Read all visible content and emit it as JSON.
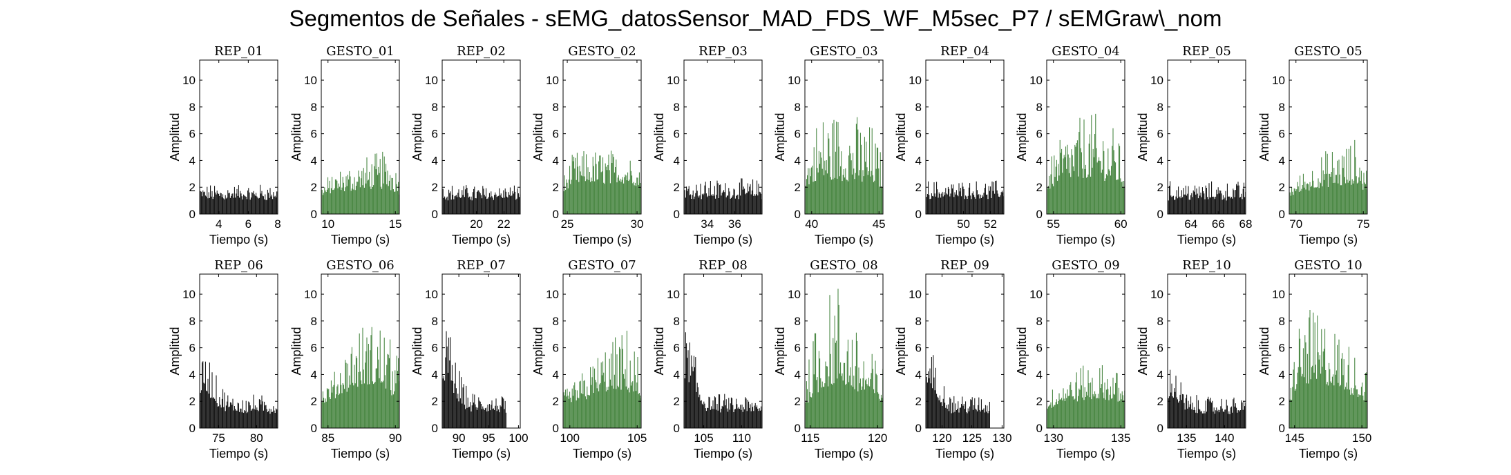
{
  "figure": {
    "title": "Segmentos de Señales - sEMG_datosSensor_MAD_FDS_WF_M5sec_P7 / sEMGraw\\_nom"
  },
  "colors": {
    "rest": "#000000",
    "gesture": "#3a7d33",
    "axis": "#000000",
    "background": "#ffffff"
  },
  "chart_data": [
    {
      "type": "area",
      "title": "REP_01",
      "kind": "rest",
      "xlabel": "Tiempo (s)",
      "ylabel": "Amplitud",
      "xlim": [
        2.7,
        8.0
      ],
      "ylim": [
        0,
        11.5
      ],
      "xticks": [
        4,
        6,
        8
      ],
      "yticks": [
        0,
        2,
        4,
        6,
        8,
        10
      ],
      "x": [
        2.7,
        8.0
      ],
      "envelope": [
        2.0,
        2.0
      ],
      "baseline": [
        1.0,
        1.0
      ]
    },
    {
      "type": "area",
      "title": "GESTO_01",
      "kind": "gesture",
      "xlabel": "Tiempo (s)",
      "ylabel": "Amplitud",
      "xlim": [
        9.5,
        15.3
      ],
      "ylim": [
        0,
        11.5
      ],
      "xticks": [
        10,
        15
      ],
      "yticks": [
        0,
        2,
        4,
        6,
        8,
        10
      ],
      "x": [
        9.5,
        10.5,
        12.5,
        14.5,
        15.3
      ],
      "envelope": [
        2.2,
        3.0,
        4.0,
        4.7,
        3.2
      ],
      "baseline": [
        1.2,
        1.5,
        1.8,
        1.8,
        1.4
      ]
    },
    {
      "type": "area",
      "title": "REP_02",
      "kind": "rest",
      "xlabel": "Tiempo (s)",
      "ylabel": "Amplitud",
      "xlim": [
        17.5,
        23.2
      ],
      "ylim": [
        0,
        11.5
      ],
      "xticks": [
        20,
        22
      ],
      "yticks": [
        0,
        2,
        4,
        6,
        8,
        10
      ],
      "x": [
        17.5,
        23.2
      ],
      "envelope": [
        2.0,
        2.0
      ],
      "baseline": [
        1.0,
        1.0
      ]
    },
    {
      "type": "area",
      "title": "GESTO_02",
      "kind": "gesture",
      "xlabel": "Tiempo (s)",
      "ylabel": "Amplitud",
      "xlim": [
        24.7,
        30.3
      ],
      "ylim": [
        0,
        11.5
      ],
      "xticks": [
        25,
        30
      ],
      "yticks": [
        0,
        2,
        4,
        6,
        8,
        10
      ],
      "x": [
        24.7,
        25.5,
        27.5,
        29.5,
        30.3
      ],
      "envelope": [
        2.5,
        4.5,
        4.7,
        4.5,
        3.2
      ],
      "baseline": [
        1.5,
        2.2,
        2.2,
        2.2,
        1.8
      ]
    },
    {
      "type": "area",
      "title": "REP_03",
      "kind": "rest",
      "xlabel": "Tiempo (s)",
      "ylabel": "Amplitud",
      "xlim": [
        32.3,
        38.0
      ],
      "ylim": [
        0,
        11.5
      ],
      "xticks": [
        34,
        36
      ],
      "yticks": [
        0,
        2,
        4,
        6,
        8,
        10
      ],
      "x": [
        32.3,
        38.0
      ],
      "envelope": [
        2.4,
        2.4
      ],
      "baseline": [
        1.1,
        1.1
      ]
    },
    {
      "type": "area",
      "title": "GESTO_03",
      "kind": "gesture",
      "xlabel": "Tiempo (s)",
      "ylabel": "Amplitud",
      "xlim": [
        39.5,
        45.3
      ],
      "ylim": [
        0,
        11.5
      ],
      "xticks": [
        40,
        45
      ],
      "yticks": [
        0,
        2,
        4,
        6,
        8,
        10
      ],
      "x": [
        39.5,
        40.5,
        42.5,
        44.5,
        45.3
      ],
      "envelope": [
        3.5,
        7.5,
        7.8,
        6.5,
        4.2
      ],
      "baseline": [
        1.8,
        2.4,
        2.4,
        2.2,
        1.8
      ]
    },
    {
      "type": "area",
      "title": "REP_04",
      "kind": "rest",
      "xlabel": "Tiempo (s)",
      "ylabel": "Amplitud",
      "xlim": [
        47.2,
        53.0
      ],
      "ylim": [
        0,
        11.5
      ],
      "xticks": [
        50,
        52
      ],
      "yticks": [
        0,
        2,
        4,
        6,
        8,
        10
      ],
      "x": [
        47.2,
        53.0
      ],
      "envelope": [
        2.3,
        2.3
      ],
      "baseline": [
        1.1,
        1.1
      ]
    },
    {
      "type": "area",
      "title": "GESTO_04",
      "kind": "gesture",
      "xlabel": "Tiempo (s)",
      "ylabel": "Amplitud",
      "xlim": [
        54.5,
        60.3
      ],
      "ylim": [
        0,
        11.5
      ],
      "xticks": [
        55,
        60
      ],
      "yticks": [
        0,
        2,
        4,
        6,
        8,
        10
      ],
      "x": [
        54.5,
        55.5,
        57.5,
        59.5,
        60.3
      ],
      "envelope": [
        3.5,
        5.5,
        7.6,
        6.5,
        4.2
      ],
      "baseline": [
        1.6,
        2.4,
        2.6,
        2.4,
        1.8
      ]
    },
    {
      "type": "area",
      "title": "REP_05",
      "kind": "rest",
      "xlabel": "Tiempo (s)",
      "ylabel": "Amplitud",
      "xlim": [
        62.3,
        68.0
      ],
      "ylim": [
        0,
        11.5
      ],
      "xticks": [
        64,
        66,
        68
      ],
      "yticks": [
        0,
        2,
        4,
        6,
        8,
        10
      ],
      "x": [
        62.3,
        68.0
      ],
      "envelope": [
        2.2,
        2.2
      ],
      "baseline": [
        1.0,
        1.0
      ]
    },
    {
      "type": "area",
      "title": "GESTO_05",
      "kind": "gesture",
      "xlabel": "Tiempo (s)",
      "ylabel": "Amplitud",
      "xlim": [
        69.5,
        75.3
      ],
      "ylim": [
        0,
        11.5
      ],
      "xticks": [
        70,
        75
      ],
      "yticks": [
        0,
        2,
        4,
        6,
        8,
        10
      ],
      "x": [
        69.5,
        70.5,
        72.5,
        74.5,
        75.3
      ],
      "envelope": [
        2.2,
        3.0,
        4.8,
        5.5,
        3.4
      ],
      "baseline": [
        1.2,
        1.6,
        2.0,
        2.0,
        1.6
      ]
    },
    {
      "type": "area",
      "title": "REP_06",
      "kind": "rest",
      "xlabel": "Tiempo (s)",
      "ylabel": "Amplitud",
      "xlim": [
        72.5,
        82.8
      ],
      "ylim": [
        0,
        11.5
      ],
      "xticks": [
        75,
        80
      ],
      "yticks": [
        0,
        2,
        4,
        6,
        8,
        10
      ],
      "x": [
        72.5,
        73.5,
        75.0,
        76.5,
        82.8
      ],
      "envelope": [
        4.5,
        5.7,
        3.5,
        2.3,
        2.2
      ],
      "baseline": [
        2.5,
        2.5,
        1.4,
        1.1,
        1.0
      ]
    },
    {
      "type": "area",
      "title": "GESTO_06",
      "kind": "gesture",
      "xlabel": "Tiempo (s)",
      "ylabel": "Amplitud",
      "xlim": [
        84.5,
        90.3
      ],
      "ylim": [
        0,
        11.5
      ],
      "xticks": [
        85,
        90
      ],
      "yticks": [
        0,
        2,
        4,
        6,
        8,
        10
      ],
      "x": [
        84.5,
        85.5,
        87.0,
        89.0,
        90.3
      ],
      "envelope": [
        2.8,
        4.0,
        7.5,
        8.2,
        5.0
      ],
      "baseline": [
        1.5,
        2.2,
        3.0,
        3.0,
        2.0
      ]
    },
    {
      "type": "area",
      "title": "REP_07",
      "kind": "rest",
      "xlabel": "Tiempo (s)",
      "ylabel": "Amplitud",
      "xlim": [
        87.2,
        100.3
      ],
      "ylim": [
        0,
        11.5
      ],
      "xticks": [
        90,
        95,
        100
      ],
      "yticks": [
        0,
        2,
        4,
        6,
        8,
        10
      ],
      "x": [
        87.2,
        88.0,
        89.5,
        91.5,
        98.0
      ],
      "envelope": [
        7.5,
        8.2,
        5.0,
        2.6,
        2.2
      ],
      "baseline": [
        3.5,
        3.5,
        2.0,
        1.2,
        1.0
      ]
    },
    {
      "type": "area",
      "title": "GESTO_07",
      "kind": "gesture",
      "xlabel": "Tiempo (s)",
      "ylabel": "Amplitud",
      "xlim": [
        99.5,
        105.3
      ],
      "ylim": [
        0,
        11.5
      ],
      "xticks": [
        100,
        105
      ],
      "yticks": [
        0,
        2,
        4,
        6,
        8,
        10
      ],
      "x": [
        99.5,
        100.5,
        102.5,
        104.5,
        105.3
      ],
      "envelope": [
        2.5,
        3.5,
        6.0,
        7.6,
        4.2
      ],
      "baseline": [
        1.4,
        1.8,
        2.6,
        2.6,
        1.8
      ]
    },
    {
      "type": "area",
      "title": "REP_08",
      "kind": "rest",
      "xlabel": "Tiempo (s)",
      "ylabel": "Amplitud",
      "xlim": [
        102.4,
        112.7
      ],
      "ylim": [
        0,
        11.5
      ],
      "xticks": [
        105,
        110
      ],
      "yticks": [
        0,
        2,
        4,
        6,
        8,
        10
      ],
      "x": [
        102.4,
        103.2,
        104.3,
        105.5,
        112.7
      ],
      "envelope": [
        7.5,
        7.0,
        4.5,
        2.4,
        2.2
      ],
      "baseline": [
        3.5,
        3.2,
        1.8,
        1.1,
        1.0
      ]
    },
    {
      "type": "area",
      "title": "GESTO_08",
      "kind": "gesture",
      "xlabel": "Tiempo (s)",
      "ylabel": "Amplitud",
      "xlim": [
        114.6,
        120.4
      ],
      "ylim": [
        0,
        11.5
      ],
      "xticks": [
        115,
        120
      ],
      "yticks": [
        0,
        2,
        4,
        6,
        8,
        10
      ],
      "x": [
        114.6,
        115.5,
        117.0,
        118.5,
        120.4
      ],
      "envelope": [
        3.5,
        8.5,
        11.3,
        7.0,
        4.5
      ],
      "baseline": [
        1.6,
        2.6,
        3.2,
        2.6,
        1.8
      ]
    },
    {
      "type": "area",
      "title": "REP_09",
      "kind": "rest",
      "xlabel": "Tiempo (s)",
      "ylabel": "Amplitud",
      "xlim": [
        117.3,
        130.3
      ],
      "ylim": [
        0,
        11.5
      ],
      "xticks": [
        120,
        125,
        130
      ],
      "yticks": [
        0,
        2,
        4,
        6,
        8,
        10
      ],
      "x": [
        117.3,
        118.2,
        119.5,
        121.5,
        128.0
      ],
      "envelope": [
        6.5,
        6.0,
        4.0,
        2.4,
        2.2
      ],
      "baseline": [
        3.2,
        3.0,
        1.8,
        1.1,
        1.0
      ]
    },
    {
      "type": "area",
      "title": "GESTO_09",
      "kind": "gesture",
      "xlabel": "Tiempo (s)",
      "ylabel": "Amplitud",
      "xlim": [
        129.5,
        135.3
      ],
      "ylim": [
        0,
        11.5
      ],
      "xticks": [
        130,
        135
      ],
      "yticks": [
        0,
        2,
        4,
        6,
        8,
        10
      ],
      "x": [
        129.5,
        130.5,
        132.5,
        134.5,
        135.3
      ],
      "envelope": [
        2.3,
        3.5,
        4.8,
        4.5,
        3.2
      ],
      "baseline": [
        1.2,
        1.8,
        2.0,
        2.0,
        1.5
      ]
    },
    {
      "type": "area",
      "title": "REP_10",
      "kind": "rest",
      "xlabel": "Tiempo (s)",
      "ylabel": "Amplitud",
      "xlim": [
        132.5,
        142.8
      ],
      "ylim": [
        0,
        11.5
      ],
      "xticks": [
        135,
        140
      ],
      "yticks": [
        0,
        2,
        4,
        6,
        8,
        10
      ],
      "x": [
        132.5,
        133.3,
        134.5,
        135.7,
        142.8
      ],
      "envelope": [
        4.2,
        4.8,
        3.0,
        2.2,
        2.1
      ],
      "baseline": [
        2.2,
        2.2,
        1.3,
        1.0,
        1.0
      ]
    },
    {
      "type": "area",
      "title": "GESTO_10",
      "kind": "gesture",
      "xlabel": "Tiempo (s)",
      "ylabel": "Amplitud",
      "xlim": [
        144.6,
        150.4
      ],
      "ylim": [
        0,
        11.5
      ],
      "xticks": [
        145,
        150
      ],
      "yticks": [
        0,
        2,
        4,
        6,
        8,
        10
      ],
      "x": [
        144.6,
        145.5,
        147.0,
        148.5,
        150.4
      ],
      "envelope": [
        3.5,
        9.0,
        8.5,
        7.0,
        4.5
      ],
      "baseline": [
        1.8,
        3.2,
        3.2,
        2.8,
        1.8
      ]
    }
  ]
}
